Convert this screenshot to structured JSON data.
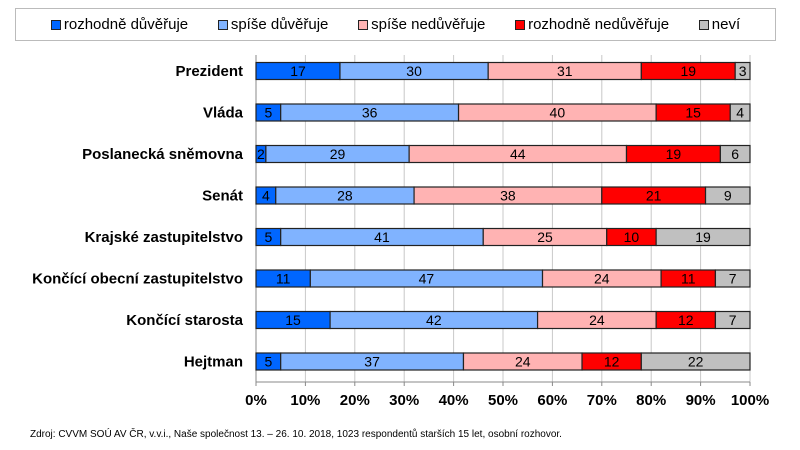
{
  "chart_data": {
    "type": "bar",
    "orientation": "horizontal",
    "stacked": true,
    "categories": [
      "Prezident",
      "Vláda",
      "Poslanecká sněmovna",
      "Senát",
      "Krajské zastupitelstvo",
      "Končící obecní zastupitelstvo",
      "Končící starosta",
      "Hejtman"
    ],
    "series": [
      {
        "name": "rozhodně důvěřuje",
        "color": "#0066ff",
        "values": [
          17,
          5,
          2,
          4,
          5,
          11,
          15,
          5
        ]
      },
      {
        "name": "spíše důvěřuje",
        "color": "#80b3ff",
        "values": [
          30,
          36,
          29,
          28,
          41,
          47,
          42,
          37
        ]
      },
      {
        "name": "spíše nedůvěřuje",
        "color": "#ffb3b3",
        "values": [
          31,
          40,
          44,
          38,
          25,
          24,
          24,
          24
        ]
      },
      {
        "name": "rozhodně nedůvěřuje",
        "color": "#ff0000",
        "values": [
          19,
          15,
          19,
          21,
          10,
          11,
          12,
          12
        ]
      },
      {
        "name": "neví",
        "color": "#c0c0c0",
        "values": [
          3,
          4,
          6,
          9,
          19,
          7,
          7,
          22
        ]
      }
    ],
    "xlim": [
      0,
      100
    ],
    "xticks": [
      "0%",
      "10%",
      "20%",
      "30%",
      "40%",
      "50%",
      "60%",
      "70%",
      "80%",
      "90%",
      "100%"
    ],
    "grid": true,
    "legend_position": "top"
  },
  "source": "Zdroj: CVVM SOÚ AV ČR, v.v.i., Naše společnost 13. – 26. 10. 2018, 1023 respondentů starších 15 let, osobní rozhovor."
}
